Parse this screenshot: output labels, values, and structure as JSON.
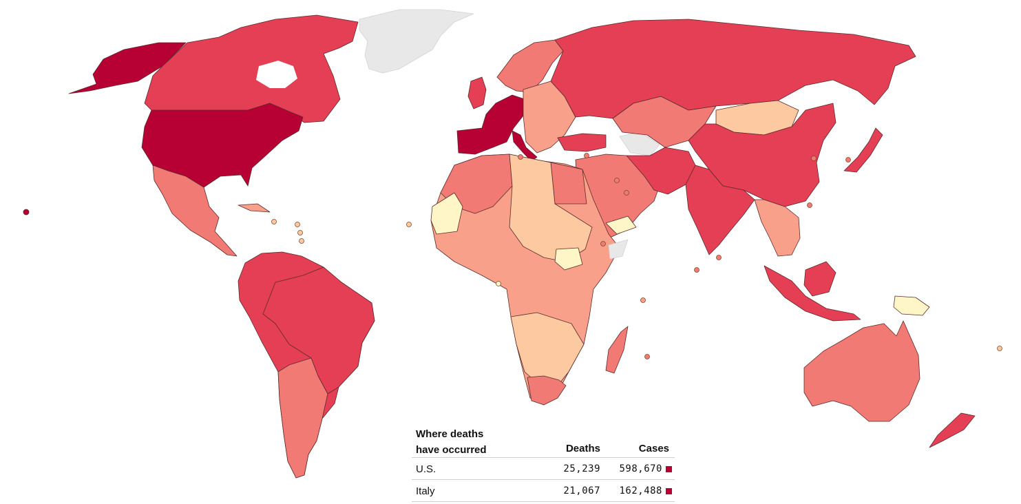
{
  "colors": {
    "no_data": "#e8e8e8",
    "lowest": "#fff6c8",
    "low": "#fdc9a0",
    "mid_low": "#f9a08a",
    "mid": "#f27a74",
    "high": "#e53f56",
    "highest": "#b70034",
    "marker": "#b70034"
  },
  "table": {
    "title_line1": "Where deaths",
    "title_line2": "have occurred",
    "col_deaths": "Deaths",
    "col_cases": "Cases",
    "rows": [
      {
        "country": "U.S.",
        "deaths": "25,239",
        "cases": "598,670"
      },
      {
        "country": "Italy",
        "deaths": "21,067",
        "cases": "162,488"
      }
    ]
  }
}
